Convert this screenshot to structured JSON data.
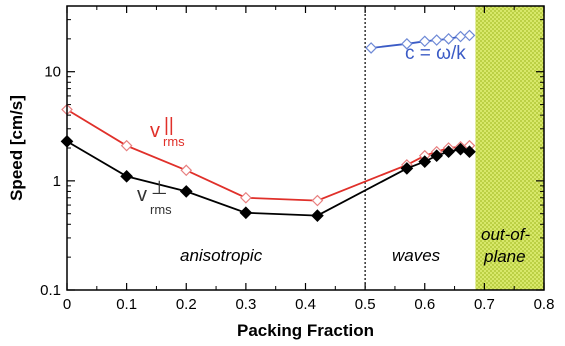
{
  "chart_data": {
    "type": "line",
    "xlabel": "Packing Fraction",
    "ylabel": "Speed  [cm/s]",
    "xlim": [
      0,
      0.8
    ],
    "ylim": [
      0.1,
      40
    ],
    "yscale": "log",
    "x_ticks": [
      "0",
      "0.1",
      "0.2",
      "0.3",
      "0.4",
      "0.5",
      "0.6",
      "0.7",
      "0.8"
    ],
    "y_ticks": [
      "0.1",
      "1",
      "10"
    ],
    "colors": {
      "parallel": "#e0302a",
      "perp": "#000000",
      "wave": "#3b5bc6",
      "shade": "#c8dc50"
    },
    "series": [
      {
        "name": "v_rms ∥",
        "label_main": "v",
        "label_sub": "rms",
        "label_sup": "||",
        "marker": "open-diamond",
        "x": [
          0,
          0.1,
          0.2,
          0.3,
          0.42,
          0.57,
          0.6,
          0.62,
          0.64,
          0.66,
          0.675
        ],
        "y": [
          4.5,
          2.1,
          1.25,
          0.7,
          0.66,
          1.4,
          1.7,
          1.85,
          2.0,
          2.05,
          2.1
        ]
      },
      {
        "name": "v_rms ⊥",
        "label_main": "v",
        "label_sub": "rms",
        "label_sup": "⊥",
        "marker": "filled-diamond",
        "x": [
          0,
          0.1,
          0.2,
          0.3,
          0.42,
          0.57,
          0.6,
          0.62,
          0.64,
          0.66,
          0.675
        ],
        "y": [
          2.3,
          1.1,
          0.8,
          0.51,
          0.48,
          1.3,
          1.5,
          1.7,
          1.85,
          1.95,
          1.85
        ]
      },
      {
        "name": "c = ω/k",
        "label": "c = ω/k",
        "marker": "open-diamond",
        "x": [
          0.51,
          0.57,
          0.6,
          0.62,
          0.64,
          0.66,
          0.675
        ],
        "y": [
          16.5,
          18,
          19,
          19.5,
          20,
          21,
          21.5
        ]
      }
    ],
    "divider_x": 0.5,
    "shaded_region": {
      "x": [
        0.685,
        0.8
      ]
    },
    "annotations": {
      "anisotropic": "anisotropic",
      "waves": "waves",
      "out_of_plane_1": "out-of-",
      "out_of_plane_2": "plane"
    }
  }
}
